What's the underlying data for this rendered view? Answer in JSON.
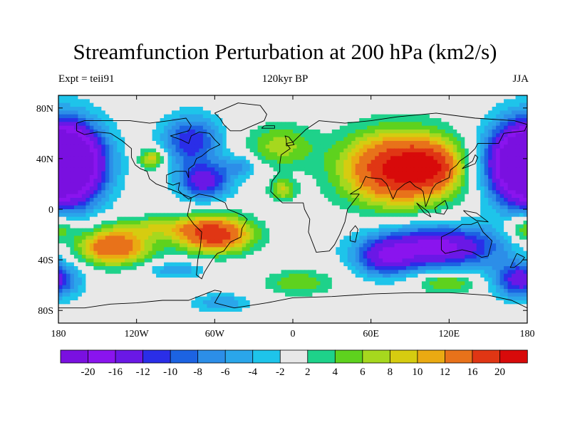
{
  "title": "Streamfunction Perturbation at 200 hPa (km2/s)",
  "left_string": "Expt = teii91",
  "center_string": "120kyr BP",
  "right_string": "JJA",
  "colors": {
    "background_fill": "#e6e6e6",
    "coastlines": "#000000",
    "palette": [
      "#7a10e0",
      "#8a14ee",
      "#6a18e6",
      "#2a2ee8",
      "#1c63e2",
      "#2c8ee8",
      "#2aa6ea",
      "#1ec4ea",
      "#e8e8e8",
      "#1ed28a",
      "#5ed21e",
      "#a6d81e",
      "#d6cc10",
      "#eaaa12",
      "#e8721a",
      "#e03614",
      "#d80a0a"
    ]
  },
  "chart_data": {
    "type": "heatmap",
    "projection": "cylindrical-equidistant",
    "xlim": [
      -180,
      180
    ],
    "ylim": [
      -90,
      90
    ],
    "x_ticks": [
      {
        "value": -180,
        "label": "180"
      },
      {
        "value": -120,
        "label": "120W"
      },
      {
        "value": -60,
        "label": "60W"
      },
      {
        "value": 0,
        "label": "0"
      },
      {
        "value": 60,
        "label": "60E"
      },
      {
        "value": 120,
        "label": "120E"
      },
      {
        "value": 180,
        "label": "180"
      }
    ],
    "y_ticks": [
      {
        "value": 80,
        "label": "80N"
      },
      {
        "value": 40,
        "label": "40N"
      },
      {
        "value": 0,
        "label": "0"
      },
      {
        "value": -40,
        "label": "40S"
      },
      {
        "value": -80,
        "label": "80S"
      }
    ],
    "contour_levels": [
      -20,
      -16,
      -12,
      -10,
      -8,
      -6,
      -4,
      -2,
      2,
      4,
      6,
      8,
      10,
      12,
      16,
      20
    ],
    "colorbar_labels": [
      "-20",
      "-16",
      "-12",
      "-10",
      "-8",
      "-6",
      "-4",
      "-2",
      "2",
      "4",
      "6",
      "8",
      "10",
      "12",
      "16",
      "20"
    ],
    "features": [
      {
        "name": "Central Asia high",
        "lon": 82,
        "lat": 32,
        "value": 22,
        "sx": 30,
        "sy": 20
      },
      {
        "name": "Tibetan extension",
        "lon": 108,
        "lat": 34,
        "value": 8,
        "sx": 14,
        "sy": 12
      },
      {
        "name": "North Pacific low",
        "lon": -172,
        "lat": 36,
        "value": -22,
        "sx": 20,
        "sy": 22
      },
      {
        "name": "North Pacific low (east rim)",
        "lon": 176,
        "lat": 36,
        "value": -20,
        "sx": 20,
        "sy": 22
      },
      {
        "name": "Canada low",
        "lon": -78,
        "lat": 54,
        "value": -12,
        "sx": 16,
        "sy": 14
      },
      {
        "name": "Caribbean low",
        "lon": -68,
        "lat": 22,
        "value": -14,
        "sx": 14,
        "sy": 10
      },
      {
        "name": "NW Atlantic low",
        "lon": -40,
        "lat": 34,
        "value": -6,
        "sx": 10,
        "sy": 6
      },
      {
        "name": "Western US high",
        "lon": -108,
        "lat": 40,
        "value": 10,
        "sx": 7,
        "sy": 6
      },
      {
        "name": "North Atlantic high",
        "lon": -10,
        "lat": 50,
        "value": 7,
        "sx": 18,
        "sy": 12
      },
      {
        "name": "Africa high",
        "lon": -8,
        "lat": 15,
        "value": 8,
        "sx": 7,
        "sy": 6
      },
      {
        "name": "South Pacific high",
        "lon": -138,
        "lat": -30,
        "value": 16,
        "sx": 20,
        "sy": 10
      },
      {
        "name": "South America high",
        "lon": -60,
        "lat": -20,
        "value": 19,
        "sx": 20,
        "sy": 10
      },
      {
        "name": "Central Pacific band",
        "lon": -105,
        "lat": -14,
        "value": 6,
        "sx": 24,
        "sy": 6
      },
      {
        "name": "Indian Ocean low",
        "lon": 110,
        "lat": -30,
        "value": -18,
        "sx": 35,
        "sy": 12
      },
      {
        "name": "Indian Ocean low (west)",
        "lon": 70,
        "lat": -40,
        "value": -10,
        "sx": 15,
        "sy": 10
      },
      {
        "name": "South Atlantic high",
        "lon": 5,
        "lat": -58,
        "value": 6,
        "sx": 18,
        "sy": 7
      },
      {
        "name": "Southern Indian Ocean high",
        "lon": 118,
        "lat": -58,
        "value": 7,
        "sx": 16,
        "sy": 6
      },
      {
        "name": "SE Pacific low",
        "lon": -90,
        "lat": -48,
        "value": -6,
        "sx": 16,
        "sy": 5
      },
      {
        "name": "Antarctic low",
        "lon": -55,
        "lat": -74,
        "value": -6,
        "sx": 16,
        "sy": 5
      },
      {
        "name": "South Pacific low",
        "lon": 175,
        "lat": -56,
        "value": -14,
        "sx": 14,
        "sy": 10
      },
      {
        "name": "SW Pacific high",
        "lon": 178,
        "lat": -15,
        "value": 8,
        "sx": 10,
        "sy": 8
      }
    ]
  },
  "map_data": {
    "land_outlines": [
      {
        "name": "North America",
        "points": [
          [
            -166,
            68
          ],
          [
            -160,
            70
          ],
          [
            -140,
            70
          ],
          [
            -125,
            70
          ],
          [
            -110,
            68
          ],
          [
            -95,
            70
          ],
          [
            -82,
            72
          ],
          [
            -78,
            66
          ],
          [
            -80,
            62
          ],
          [
            -94,
            58
          ],
          [
            -86,
            55
          ],
          [
            -80,
            52
          ],
          [
            -78,
            58
          ],
          [
            -72,
            61
          ],
          [
            -64,
            60
          ],
          [
            -60,
            55
          ],
          [
            -56,
            51
          ],
          [
            -64,
            47
          ],
          [
            -70,
            42
          ],
          [
            -74,
            40
          ],
          [
            -76,
            35
          ],
          [
            -80,
            32
          ],
          [
            -80,
            25
          ],
          [
            -82,
            30
          ],
          [
            -84,
            30
          ],
          [
            -90,
            30
          ],
          [
            -97,
            27
          ],
          [
            -97,
            21
          ],
          [
            -92,
            19
          ],
          [
            -87,
            21
          ],
          [
            -88,
            15
          ],
          [
            -84,
            11
          ],
          [
            -80,
            8
          ],
          [
            -78,
            9
          ],
          [
            -85,
            12
          ],
          [
            -92,
            15
          ],
          [
            -105,
            20
          ],
          [
            -110,
            24
          ],
          [
            -112,
            30
          ],
          [
            -117,
            32
          ],
          [
            -121,
            35
          ],
          [
            -124,
            41
          ],
          [
            -124,
            48
          ],
          [
            -131,
            54
          ],
          [
            -140,
            60
          ],
          [
            -150,
            61
          ],
          [
            -160,
            59
          ],
          [
            -166,
            62
          ],
          [
            -166,
            68
          ]
        ]
      },
      {
        "name": "Greenland",
        "points": [
          [
            -60,
            76
          ],
          [
            -42,
            84
          ],
          [
            -25,
            82
          ],
          [
            -20,
            75
          ],
          [
            -22,
            70
          ],
          [
            -40,
            62
          ],
          [
            -48,
            62
          ],
          [
            -53,
            67
          ],
          [
            -56,
            72
          ],
          [
            -60,
            76
          ]
        ]
      },
      {
        "name": "South America",
        "points": [
          [
            -78,
            9
          ],
          [
            -72,
            12
          ],
          [
            -62,
            10
          ],
          [
            -52,
            5
          ],
          [
            -50,
            0
          ],
          [
            -45,
            -2
          ],
          [
            -38,
            -5
          ],
          [
            -35,
            -8
          ],
          [
            -39,
            -15
          ],
          [
            -40,
            -22
          ],
          [
            -48,
            -26
          ],
          [
            -53,
            -33
          ],
          [
            -58,
            -35
          ],
          [
            -62,
            -40
          ],
          [
            -65,
            -45
          ],
          [
            -68,
            -50
          ],
          [
            -70,
            -55
          ],
          [
            -74,
            -52
          ],
          [
            -73,
            -40
          ],
          [
            -71,
            -30
          ],
          [
            -70,
            -18
          ],
          [
            -76,
            -12
          ],
          [
            -81,
            -5
          ],
          [
            -80,
            0
          ],
          [
            -78,
            9
          ]
        ]
      },
      {
        "name": "Eurasia and Africa",
        "points": [
          [
            -10,
            36
          ],
          [
            -9,
            43
          ],
          [
            -2,
            48
          ],
          [
            -5,
            52
          ],
          [
            0,
            53
          ],
          [
            5,
            58
          ],
          [
            10,
            63
          ],
          [
            20,
            70
          ],
          [
            40,
            68
          ],
          [
            60,
            70
          ],
          [
            80,
            73
          ],
          [
            110,
            76
          ],
          [
            140,
            72
          ],
          [
            170,
            70
          ],
          [
            180,
            67
          ],
          [
            178,
            62
          ],
          [
            162,
            60
          ],
          [
            158,
            52
          ],
          [
            142,
            52
          ],
          [
            140,
            48
          ],
          [
            135,
            43
          ],
          [
            128,
            38
          ],
          [
            126,
            35
          ],
          [
            121,
            31
          ],
          [
            120,
            25
          ],
          [
            110,
            20
          ],
          [
            107,
            16
          ],
          [
            105,
            10
          ],
          [
            102,
            2
          ],
          [
            100,
            14
          ],
          [
            98,
            16
          ],
          [
            94,
            18
          ],
          [
            90,
            22
          ],
          [
            86,
            20
          ],
          [
            80,
            15
          ],
          [
            77,
            8
          ],
          [
            72,
            20
          ],
          [
            68,
            24
          ],
          [
            58,
            25
          ],
          [
            56,
            26
          ],
          [
            52,
            17
          ],
          [
            44,
            12
          ],
          [
            51,
            12
          ],
          [
            42,
            0
          ],
          [
            40,
            -10
          ],
          [
            36,
            -20
          ],
          [
            32,
            -28
          ],
          [
            28,
            -33
          ],
          [
            18,
            -34
          ],
          [
            12,
            -18
          ],
          [
            13,
            -8
          ],
          [
            9,
            0
          ],
          [
            8,
            5
          ],
          [
            -8,
            5
          ],
          [
            -17,
            14
          ],
          [
            -16,
            22
          ],
          [
            -10,
            30
          ],
          [
            -10,
            36
          ]
        ]
      },
      {
        "name": "Australia",
        "points": [
          [
            114,
            -22
          ],
          [
            122,
            -18
          ],
          [
            130,
            -12
          ],
          [
            137,
            -12
          ],
          [
            142,
            -10
          ],
          [
            146,
            -18
          ],
          [
            153,
            -25
          ],
          [
            150,
            -37
          ],
          [
            145,
            -38
          ],
          [
            138,
            -34
          ],
          [
            130,
            -32
          ],
          [
            117,
            -35
          ],
          [
            114,
            -32
          ],
          [
            114,
            -22
          ]
        ]
      },
      {
        "name": "Antarctica",
        "points": [
          [
            -180,
            -78
          ],
          [
            -160,
            -78
          ],
          [
            -140,
            -75
          ],
          [
            -120,
            -74
          ],
          [
            -100,
            -72
          ],
          [
            -80,
            -72
          ],
          [
            -65,
            -66
          ],
          [
            -60,
            -64
          ],
          [
            -55,
            -65
          ],
          [
            -60,
            -74
          ],
          [
            -45,
            -78
          ],
          [
            -20,
            -74
          ],
          [
            0,
            -70
          ],
          [
            30,
            -69
          ],
          [
            60,
            -67
          ],
          [
            90,
            -66
          ],
          [
            120,
            -66
          ],
          [
            150,
            -68
          ],
          [
            168,
            -72
          ],
          [
            180,
            -78
          ]
        ]
      },
      {
        "name": "Madagascar",
        "points": [
          [
            44,
            -25
          ],
          [
            48,
            -26
          ],
          [
            50,
            -16
          ],
          [
            48,
            -13
          ],
          [
            44,
            -18
          ],
          [
            44,
            -25
          ]
        ]
      },
      {
        "name": "Japan",
        "points": [
          [
            130,
            32
          ],
          [
            135,
            34
          ],
          [
            140,
            36
          ],
          [
            142,
            41
          ],
          [
            140,
            43
          ],
          [
            138,
            38
          ],
          [
            132,
            34
          ],
          [
            130,
            32
          ]
        ]
      },
      {
        "name": "British Isles",
        "points": [
          [
            -5,
            50
          ],
          [
            1,
            51
          ],
          [
            0,
            53
          ],
          [
            -3,
            57
          ],
          [
            -6,
            58
          ],
          [
            -5,
            55
          ],
          [
            -5,
            50
          ]
        ]
      },
      {
        "name": "New Guinea",
        "points": [
          [
            131,
            -1
          ],
          [
            141,
            -3
          ],
          [
            150,
            -10
          ],
          [
            141,
            -9
          ],
          [
            134,
            -4
          ],
          [
            131,
            -1
          ]
        ]
      },
      {
        "name": "Borneo",
        "points": [
          [
            109,
            1
          ],
          [
            117,
            7
          ],
          [
            119,
            1
          ],
          [
            116,
            -4
          ],
          [
            110,
            -3
          ],
          [
            109,
            1
          ]
        ]
      },
      {
        "name": "Sumatra",
        "points": [
          [
            95,
            5
          ],
          [
            104,
            -2
          ],
          [
            106,
            -6
          ],
          [
            101,
            -3
          ],
          [
            95,
            5
          ]
        ]
      },
      {
        "name": "New Zealand",
        "points": [
          [
            172,
            -35
          ],
          [
            178,
            -38
          ],
          [
            175,
            -42
          ],
          [
            170,
            -46
          ],
          [
            167,
            -46
          ],
          [
            172,
            -35
          ]
        ]
      },
      {
        "name": "Iceland",
        "points": [
          [
            -24,
            64
          ],
          [
            -14,
            64
          ],
          [
            -14,
            66
          ],
          [
            -22,
            66
          ],
          [
            -24,
            64
          ]
        ]
      }
    ]
  }
}
